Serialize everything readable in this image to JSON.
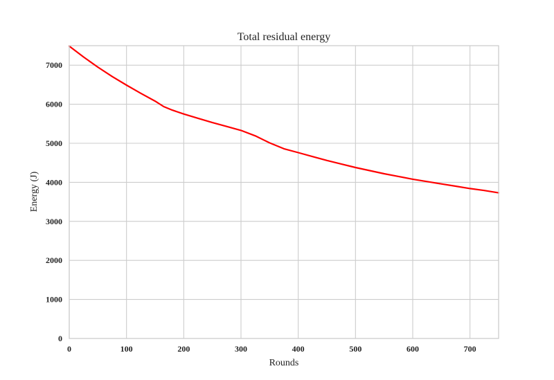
{
  "chart_data": {
    "type": "line",
    "title": "Total residual energy",
    "xlabel": "Rounds",
    "ylabel": "Energy (J)",
    "xlim": [
      0,
      750
    ],
    "ylim": [
      0,
      7500
    ],
    "xticks": [
      0,
      100,
      200,
      300,
      400,
      500,
      600,
      700
    ],
    "yticks": [
      0,
      1000,
      2000,
      3000,
      4000,
      5000,
      6000,
      7000
    ],
    "grid": true,
    "series": [
      {
        "color": "#ff0000",
        "x": [
          0,
          25,
          50,
          75,
          100,
          125,
          150,
          165,
          180,
          200,
          225,
          250,
          275,
          300,
          325,
          350,
          375,
          400,
          425,
          450,
          475,
          500,
          525,
          550,
          575,
          600,
          625,
          650,
          675,
          700,
          725,
          750
        ],
        "y": [
          7490,
          7210,
          6950,
          6710,
          6490,
          6280,
          6080,
          5940,
          5850,
          5750,
          5640,
          5530,
          5430,
          5330,
          5190,
          5010,
          4860,
          4760,
          4660,
          4560,
          4470,
          4380,
          4300,
          4220,
          4150,
          4080,
          4020,
          3960,
          3900,
          3840,
          3790,
          3730
        ]
      }
    ]
  }
}
